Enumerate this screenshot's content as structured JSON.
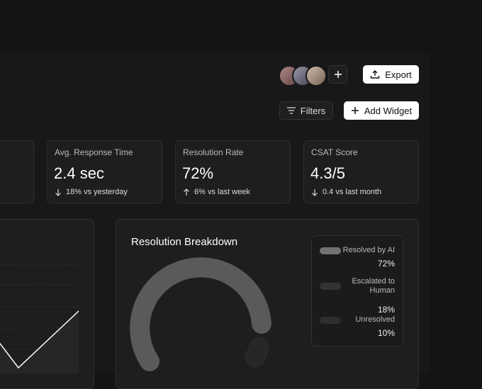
{
  "header": {
    "export_button": "Export",
    "filters_button": "Filters",
    "add_widget_button": "Add Widget"
  },
  "kpis": [
    {
      "label": "Avg. Response Time",
      "value": "2.4 sec",
      "change": "18% vs yesterday"
    },
    {
      "label": "Resolution Rate",
      "value": "72%",
      "change": "6% vs last week"
    },
    {
      "label": "CSAT Score",
      "value": "4.3/5",
      "change": "0.4 vs last month"
    }
  ],
  "breakdown": {
    "title": "Resolution Breakdown",
    "items": [
      {
        "label": "Resolved by AI",
        "value": "72%"
      },
      {
        "label": "Escalated to Human",
        "value": "18%"
      },
      {
        "label": "Unresolved",
        "value": "10%"
      }
    ]
  }
}
